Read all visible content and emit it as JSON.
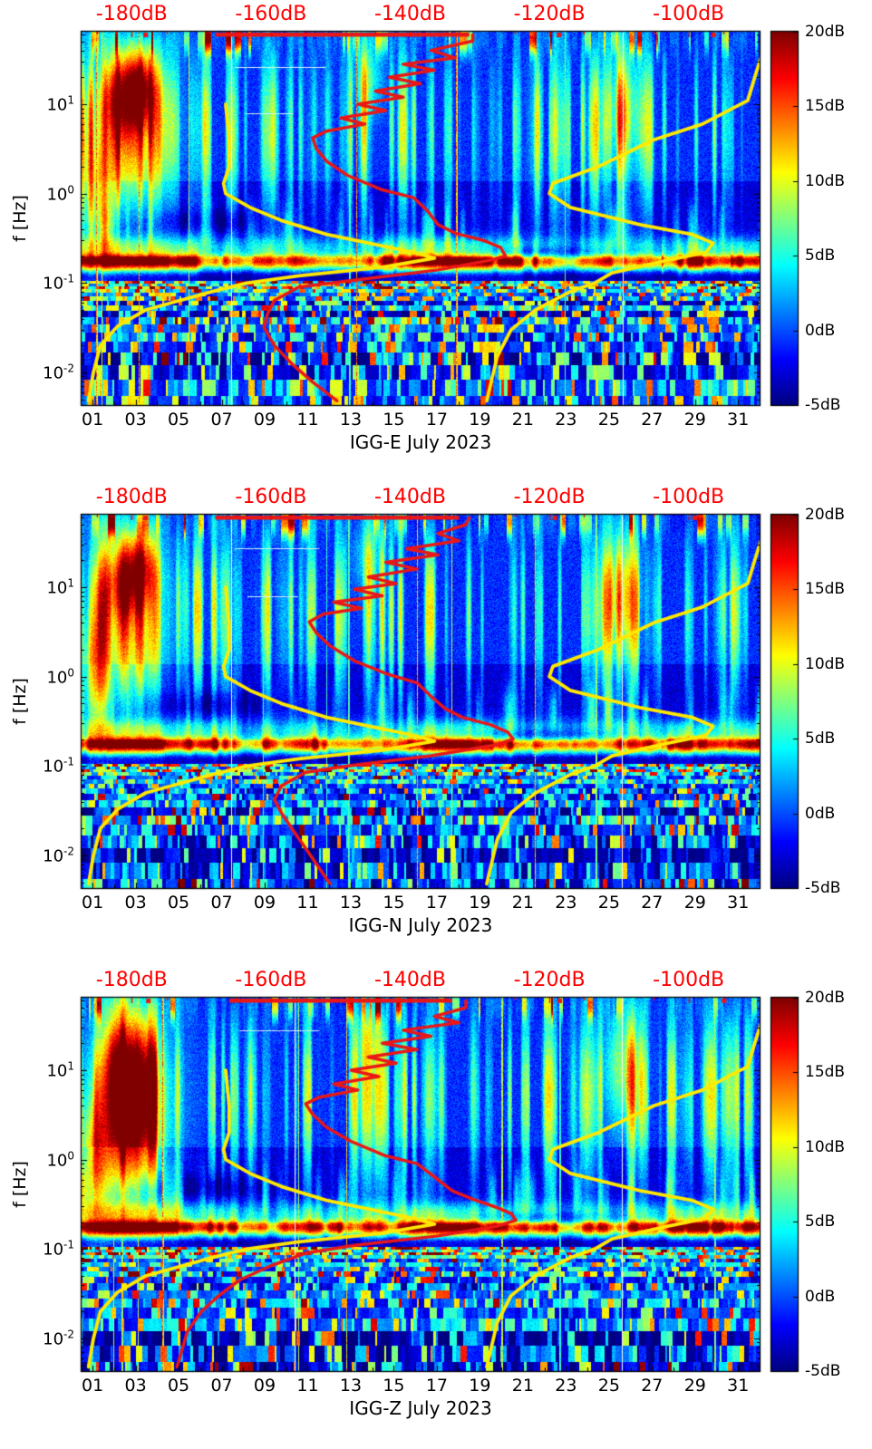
{
  "chart_data": {
    "type": "heatmap",
    "subtype": "seismic-spectrogram-with-psd-curves",
    "title": "",
    "x_axis": {
      "range_days": [
        0.49,
        32.0
      ],
      "ticks": [
        {
          "label": "01",
          "day": 1
        },
        {
          "label": "03",
          "day": 3
        },
        {
          "label": "05",
          "day": 5
        },
        {
          "label": "07",
          "day": 7
        },
        {
          "label": "09",
          "day": 9
        },
        {
          "label": "11",
          "day": 11
        },
        {
          "label": "13",
          "day": 13
        },
        {
          "label": "15",
          "day": 15
        },
        {
          "label": "17",
          "day": 17
        },
        {
          "label": "19",
          "day": 19
        },
        {
          "label": "21",
          "day": 21
        },
        {
          "label": "23",
          "day": 23
        },
        {
          "label": "25",
          "day": 25
        },
        {
          "label": "27",
          "day": 27
        },
        {
          "label": "29",
          "day": 29
        },
        {
          "label": "31",
          "day": 31
        }
      ]
    },
    "y_axis": {
      "label": "f [Hz]",
      "scale": "log",
      "range_hz": [
        0.00431,
        64.7
      ],
      "ticks": [
        {
          "mantissa": "10",
          "exponent": "1",
          "hz": 10
        },
        {
          "mantissa": "10",
          "exponent": "0",
          "hz": 1
        },
        {
          "mantissa": "10",
          "exponent": "-1",
          "hz": 0.1
        },
        {
          "mantissa": "10",
          "exponent": "-2",
          "hz": 0.01
        }
      ]
    },
    "top_axis": {
      "unit": "dB",
      "color": "#ff0000",
      "range_db": [
        -187.2,
        -89.8
      ],
      "labels": [
        {
          "text": "-180dB",
          "db": -180
        },
        {
          "text": "-160dB",
          "db": -160
        },
        {
          "text": "-140dB",
          "db": -140
        },
        {
          "text": "-120dB",
          "db": -120
        },
        {
          "text": "-100dB",
          "db": -100
        }
      ]
    },
    "colorbar": {
      "range_db": [
        -5,
        20
      ],
      "colormap": "jet",
      "ticks": [
        {
          "text": "20dB",
          "value": 20
        },
        {
          "text": "15dB",
          "value": 15
        },
        {
          "text": "10dB",
          "value": 10
        },
        {
          "text": "5dB",
          "value": 5
        },
        {
          "text": "0dB",
          "value": 0
        },
        {
          "text": "-5dB",
          "value": -5
        }
      ]
    },
    "reference_curves": {
      "color": "#ffe900",
      "low_noise_model_hz_db": [
        [
          10,
          -166.5
        ],
        [
          4,
          -166
        ],
        [
          2,
          -166
        ],
        [
          1.3,
          -166.8
        ],
        [
          1,
          -166.5
        ],
        [
          0.7,
          -163
        ],
        [
          0.5,
          -158.5
        ],
        [
          0.35,
          -152
        ],
        [
          0.26,
          -144
        ],
        [
          0.22,
          -139.5
        ],
        [
          0.19,
          -136.5
        ],
        [
          0.15,
          -144
        ],
        [
          0.12,
          -156
        ],
        [
          0.1,
          -163.5
        ],
        [
          0.08,
          -168.5
        ],
        [
          0.05,
          -178
        ],
        [
          0.033,
          -182
        ],
        [
          0.02,
          -184.5
        ],
        [
          0.01,
          -185.5
        ],
        [
          0.0048,
          -186.2
        ]
      ],
      "high_noise_model_hz_db": [
        [
          62,
          -88.5
        ],
        [
          20,
          -90.5
        ],
        [
          11,
          -91.5
        ],
        [
          6,
          -98
        ],
        [
          4,
          -105
        ],
        [
          2,
          -113
        ],
        [
          1.3,
          -119.5
        ],
        [
          1,
          -120
        ],
        [
          0.7,
          -117
        ],
        [
          0.45,
          -107
        ],
        [
          0.35,
          -99.5
        ],
        [
          0.28,
          -96.5
        ],
        [
          0.22,
          -97.5
        ],
        [
          0.18,
          -103
        ],
        [
          0.13,
          -111
        ],
        [
          0.1,
          -113.5
        ],
        [
          0.08,
          -117
        ],
        [
          0.05,
          -122
        ],
        [
          0.03,
          -125.5
        ],
        [
          0.015,
          -127.5
        ],
        [
          0.0048,
          -129
        ]
      ]
    },
    "median_curve_color": "#ea1717",
    "panels": [
      {
        "xlabel": "IGG-E July 2023",
        "seed": 101,
        "median_psd_hz_db": [
          [
            60,
            -131
          ],
          [
            51,
            -131
          ],
          [
            40,
            -137
          ],
          [
            33,
            -133.5
          ],
          [
            28,
            -141
          ],
          [
            24,
            -136.5
          ],
          [
            20,
            -143
          ],
          [
            17,
            -138.5
          ],
          [
            14,
            -145
          ],
          [
            12,
            -141
          ],
          [
            10,
            -147.5
          ],
          [
            8.5,
            -143.5
          ],
          [
            7,
            -150
          ],
          [
            6,
            -146.5
          ],
          [
            5,
            -152
          ],
          [
            4.2,
            -154
          ],
          [
            3.2,
            -153.5
          ],
          [
            2.3,
            -152
          ],
          [
            1.6,
            -149
          ],
          [
            1.1,
            -144
          ],
          [
            0.9,
            -139.5
          ],
          [
            0.64,
            -137.5
          ],
          [
            0.45,
            -136
          ],
          [
            0.36,
            -133.5
          ],
          [
            0.3,
            -129.5
          ],
          [
            0.25,
            -127
          ],
          [
            0.2,
            -126.3
          ],
          [
            0.18,
            -128.5
          ],
          [
            0.14,
            -136
          ],
          [
            0.11,
            -147
          ],
          [
            0.09,
            -156
          ],
          [
            0.064,
            -159.5
          ],
          [
            0.045,
            -160.5
          ],
          [
            0.032,
            -161
          ],
          [
            0.02,
            -159.5
          ],
          [
            0.0125,
            -157
          ],
          [
            0.0078,
            -154
          ],
          [
            0.0048,
            -150.5
          ]
        ],
        "top_clip_segment_db": [
          -168,
          -131.5
        ],
        "top_markers_db": [
          -178,
          -118.6,
          -96.4
        ],
        "hotspots_day_hz_amp_sd_sf": [
          [
            2.4,
            13,
            13,
            0.7,
            0.35
          ],
          [
            3.3,
            16,
            11,
            0.5,
            0.3
          ],
          [
            2.8,
            9,
            7,
            1.4,
            0.55
          ],
          [
            2.8,
            1.8,
            8,
            1.0,
            0.45
          ],
          [
            25.6,
            9,
            8,
            0.6,
            0.5
          ],
          [
            13.8,
            20,
            6,
            0.5,
            0.3
          ],
          [
            1.2,
            0.8,
            9,
            0.5,
            0.5
          ]
        ],
        "cold_patches_day_hz_amp_sd_sf": [
          [
            22,
            0.22,
            5,
            2.5,
            0.06
          ],
          [
            6.5,
            0.5,
            3,
            1.8,
            0.1
          ]
        ],
        "microseism_events_day_width_strength": [
          [
            3,
            1.6,
            0.95
          ],
          [
            7.5,
            1.5,
            0.2
          ],
          [
            10.6,
            0.8,
            0.5
          ],
          [
            13,
            1,
            0.3
          ],
          [
            17.6,
            1.7,
            0.9
          ],
          [
            21,
            1,
            0.25
          ],
          [
            24,
            1,
            0.3
          ],
          [
            26.5,
            1,
            0.35
          ],
          [
            29.5,
            1.2,
            0.5
          ],
          [
            31.8,
            0.8,
            0.45
          ]
        ],
        "gap_days": [
          7.45,
          25.65
        ],
        "hlines_d1_d2_hz": [
          [
            7.6,
            11.8,
            26
          ],
          [
            8.1,
            10.3,
            8
          ]
        ]
      },
      {
        "xlabel": "IGG-N July 2023",
        "seed": 202,
        "median_psd_hz_db": [
          [
            60,
            -131.5
          ],
          [
            50,
            -132
          ],
          [
            40,
            -136
          ],
          [
            33,
            -133
          ],
          [
            27,
            -140.5
          ],
          [
            23,
            -136
          ],
          [
            19,
            -143.5
          ],
          [
            16,
            -139
          ],
          [
            13,
            -146
          ],
          [
            11,
            -142
          ],
          [
            9.5,
            -148
          ],
          [
            8,
            -144
          ],
          [
            6.8,
            -151
          ],
          [
            5.8,
            -147
          ],
          [
            5,
            -152.5
          ],
          [
            4.1,
            -154.5
          ],
          [
            3.1,
            -153.5
          ],
          [
            2.2,
            -151.5
          ],
          [
            1.5,
            -148
          ],
          [
            1.05,
            -143
          ],
          [
            0.85,
            -139
          ],
          [
            0.6,
            -137
          ],
          [
            0.44,
            -135
          ],
          [
            0.35,
            -132.5
          ],
          [
            0.29,
            -128.5
          ],
          [
            0.24,
            -126
          ],
          [
            0.2,
            -125.2
          ],
          [
            0.17,
            -128
          ],
          [
            0.13,
            -137
          ],
          [
            0.1,
            -149
          ],
          [
            0.085,
            -155
          ],
          [
            0.06,
            -158.5
          ],
          [
            0.042,
            -159.5
          ],
          [
            0.03,
            -158.5
          ],
          [
            0.02,
            -157
          ],
          [
            0.012,
            -155
          ],
          [
            0.0048,
            -151.5
          ]
        ],
        "top_clip_segment_db": [
          -168,
          -133
        ],
        "top_markers_db": [
          -178,
          -119.2,
          -99.1
        ],
        "hotspots_day_hz_amp_sd_sf": [
          [
            2.4,
            12,
            12,
            0.65,
            0.35
          ],
          [
            3.3,
            18,
            10,
            0.5,
            0.3
          ],
          [
            2.8,
            9,
            6,
            1.4,
            0.55
          ],
          [
            2.8,
            1.5,
            8,
            1.0,
            0.45
          ],
          [
            25.6,
            9,
            8,
            0.6,
            0.5
          ],
          [
            13.8,
            22,
            5,
            0.5,
            0.3
          ],
          [
            1.1,
            0.9,
            9,
            0.5,
            0.5
          ]
        ],
        "cold_patches_day_hz_amp_sd_sf": [
          [
            22,
            0.22,
            5,
            2.5,
            0.06
          ],
          [
            6.5,
            0.5,
            3,
            1.8,
            0.1
          ]
        ],
        "microseism_events_day_width_strength": [
          [
            3,
            1.6,
            0.95
          ],
          [
            7.5,
            1.5,
            0.2
          ],
          [
            10.6,
            0.8,
            0.45
          ],
          [
            13,
            1,
            0.3
          ],
          [
            17.6,
            1.7,
            0.9
          ],
          [
            21,
            1,
            0.25
          ],
          [
            24,
            1,
            0.3
          ],
          [
            26.5,
            1,
            0.35
          ],
          [
            29.5,
            1.2,
            0.5
          ],
          [
            31.8,
            0.8,
            0.45
          ]
        ],
        "gap_days": [
          7.45,
          25.6
        ],
        "hlines_d1_d2_hz": [
          [
            7.6,
            11.5,
            27
          ],
          [
            8.2,
            10.5,
            8
          ]
        ]
      },
      {
        "xlabel": "IGG-Z July 2023",
        "seed": 303,
        "median_psd_hz_db": [
          [
            60,
            -132
          ],
          [
            50,
            -132
          ],
          [
            40,
            -136.5
          ],
          [
            34,
            -133
          ],
          [
            28,
            -141
          ],
          [
            24,
            -137
          ],
          [
            20,
            -144
          ],
          [
            17,
            -139
          ],
          [
            14,
            -146
          ],
          [
            12,
            -142
          ],
          [
            10,
            -148.5
          ],
          [
            8.5,
            -144.5
          ],
          [
            7,
            -151
          ],
          [
            6,
            -147.5
          ],
          [
            5,
            -153
          ],
          [
            4.2,
            -155
          ],
          [
            3.2,
            -154
          ],
          [
            2.3,
            -152
          ],
          [
            1.6,
            -148.5
          ],
          [
            1.1,
            -143.5
          ],
          [
            0.9,
            -139
          ],
          [
            0.64,
            -136.5
          ],
          [
            0.45,
            -134
          ],
          [
            0.36,
            -131
          ],
          [
            0.3,
            -128
          ],
          [
            0.25,
            -125.5
          ],
          [
            0.21,
            -124.8
          ],
          [
            0.18,
            -127.5
          ],
          [
            0.14,
            -136
          ],
          [
            0.11,
            -148
          ],
          [
            0.09,
            -155
          ],
          [
            0.065,
            -160
          ],
          [
            0.045,
            -164.5
          ],
          [
            0.03,
            -167.5
          ],
          [
            0.02,
            -170
          ],
          [
            0.012,
            -172
          ],
          [
            0.0048,
            -173.5
          ]
        ],
        "top_clip_segment_db": [
          -166,
          -134
        ],
        "top_markers_db": [
          -177.6,
          -118.5,
          -94.9
        ],
        "hotspots_day_hz_amp_sd_sf": [
          [
            2.1,
            10,
            15,
            0.5,
            0.5
          ],
          [
            3.2,
            8,
            14,
            0.55,
            0.55
          ],
          [
            2.7,
            6,
            8,
            1.5,
            0.65
          ],
          [
            2.6,
            1.2,
            11,
            1.0,
            0.5
          ],
          [
            25.6,
            11,
            9,
            0.6,
            0.5
          ],
          [
            1.1,
            0.7,
            10,
            0.5,
            0.5
          ],
          [
            13.8,
            25,
            5,
            0.4,
            0.25
          ]
        ],
        "cold_patches_day_hz_amp_sd_sf": [
          [
            22,
            0.22,
            5,
            2.5,
            0.06
          ],
          [
            6.5,
            0.5,
            3,
            1.8,
            0.1
          ]
        ],
        "microseism_events_day_width_strength": [
          [
            2.9,
            1.7,
            1.0
          ],
          [
            7.5,
            1.5,
            0.2
          ],
          [
            10.6,
            0.8,
            0.45
          ],
          [
            13,
            1,
            0.25
          ],
          [
            17.6,
            1.8,
            0.85
          ],
          [
            21,
            1,
            0.25
          ],
          [
            24,
            1,
            0.3
          ],
          [
            26.5,
            1,
            0.35
          ],
          [
            29.5,
            1.2,
            0.5
          ],
          [
            31.8,
            0.8,
            0.4
          ]
        ],
        "gap_days": [
          10.4,
          25.6
        ],
        "hlines_d1_d2_hz": [
          [
            7.8,
            11.5,
            28
          ]
        ]
      }
    ]
  }
}
